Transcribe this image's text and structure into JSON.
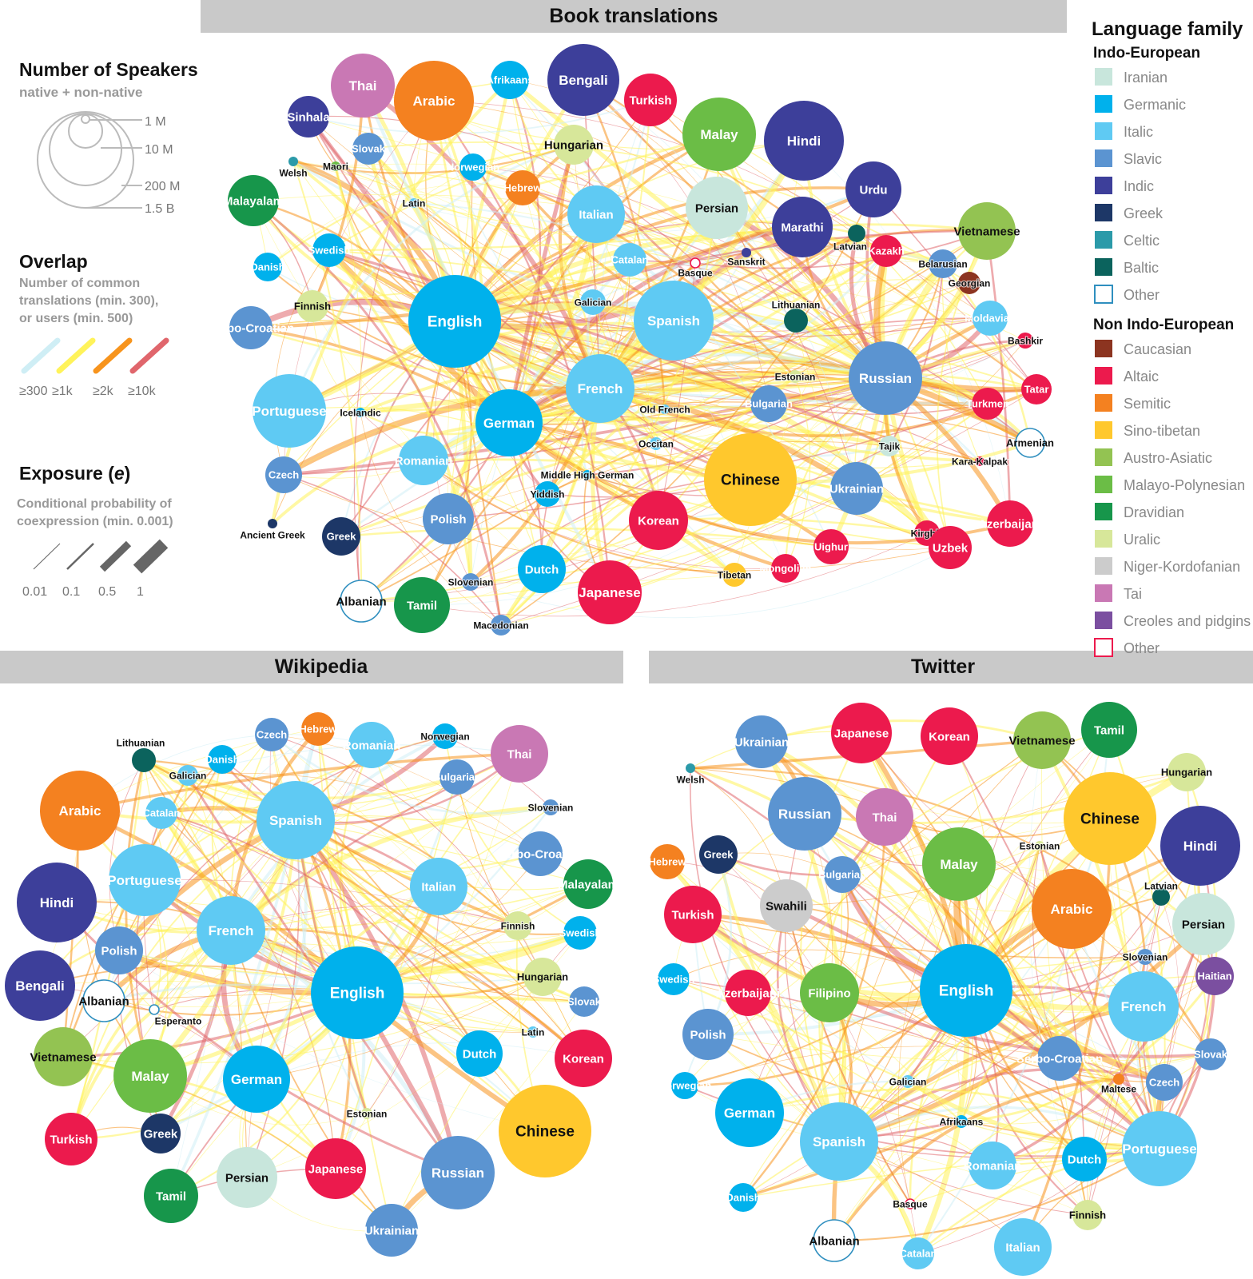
{
  "colors": {
    "Iranian": "#c8e6dc",
    "Germanic": "#00b1ec",
    "Italic": "#5fcaf3",
    "Slavic": "#5b94d1",
    "Indic": "#3d3f9a",
    "Greek": "#1d3767",
    "Celtic": "#2b9aa9",
    "Baltic": "#0b635d",
    "OtherIE": "#ffffff",
    "Caucasian": "#8c3420",
    "Altaic": "#ec1a4d",
    "Semitic": "#f48120",
    "Sino-tibetan": "#ffc82d",
    "Austro-Asiatic": "#93c352",
    "Malayo-Polynesian": "#6bbd46",
    "Dravidian": "#17964b",
    "Uralic": "#d7e79a",
    "Niger-Kordofanian": "#cccccc",
    "Tai": "#c978b4",
    "Creoles and pidgins": "#7b4fa0",
    "OtherNIE": "#ffffff"
  },
  "edge_colors": [
    "#cfeef5",
    "#fff35a",
    "#f7941d",
    "#e0666c"
  ],
  "panels": {
    "book": "Book translations",
    "wikipedia": "Wikipedia",
    "twitter": "Twitter"
  },
  "legend": {
    "speakers_title": "Number of Speakers",
    "speakers_sub": "native + non-native",
    "speakers_sizes": [
      "1 M",
      "10 M",
      "200 M",
      "1.5 B"
    ],
    "overlap_title": "Overlap",
    "overlap_sub": [
      "Number of common",
      "translations (min. 300),",
      "or users (min. 500)"
    ],
    "overlap_labels": [
      "≥300",
      "≥1k",
      "≥2k",
      "≥10k"
    ],
    "exposure_title": "Exposure (",
    "exposure_var": "e",
    "exposure_close": ")",
    "exposure_sub": [
      "Conditional probability of",
      "coexpression (min. 0.001)"
    ],
    "exposure_labels": [
      "0.01",
      "0.1",
      "0.5",
      "1"
    ],
    "family_title": "Language family",
    "ie_title": "Indo-European",
    "ie_items": [
      {
        "label": "Iranian",
        "key": "Iranian"
      },
      {
        "label": "Germanic",
        "key": "Germanic"
      },
      {
        "label": "Italic",
        "key": "Italic"
      },
      {
        "label": "Slavic",
        "key": "Slavic"
      },
      {
        "label": "Indic",
        "key": "Indic"
      },
      {
        "label": "Greek",
        "key": "Greek"
      },
      {
        "label": "Celtic",
        "key": "Celtic"
      },
      {
        "label": "Baltic",
        "key": "Baltic"
      },
      {
        "label": "Other",
        "key": "OtherIE",
        "outline": "#2f8fbf"
      }
    ],
    "nie_title": "Non Indo-European",
    "nie_items": [
      {
        "label": "Caucasian",
        "key": "Caucasian"
      },
      {
        "label": "Altaic",
        "key": "Altaic"
      },
      {
        "label": "Semitic",
        "key": "Semitic"
      },
      {
        "label": "Sino-tibetan",
        "key": "Sino-tibetan"
      },
      {
        "label": "Austro-Asiatic",
        "key": "Austro-Asiatic"
      },
      {
        "label": "Malayo-Polynesian",
        "key": "Malayo-Polynesian"
      },
      {
        "label": "Dravidian",
        "key": "Dravidian"
      },
      {
        "label": "Uralic",
        "key": "Uralic"
      },
      {
        "label": "Niger-Kordofanian",
        "key": "Niger-Kordofanian"
      },
      {
        "label": "Tai",
        "key": "Tai"
      },
      {
        "label": "Creoles and pidgins",
        "key": "Creoles and pidgins"
      },
      {
        "label": "Other",
        "key": "OtherNIE",
        "outline": "#ec1a4d"
      }
    ]
  },
  "book_nodes": [
    {
      "name": "Thai",
      "f": "Tai",
      "s": 40
    },
    {
      "name": "Arabic",
      "f": "Semitic",
      "s": 50
    },
    {
      "name": "Afrikaans",
      "f": "Germanic",
      "s": 24
    },
    {
      "name": "Bengali",
      "f": "Indic",
      "s": 45
    },
    {
      "name": "Turkish",
      "f": "Altaic",
      "s": 33
    },
    {
      "name": "Malay",
      "f": "Malayo-Polynesian",
      "s": 46
    },
    {
      "name": "Hindi",
      "f": "Indic",
      "s": 50
    },
    {
      "name": "Sinhala",
      "f": "Indic",
      "s": 26
    },
    {
      "name": "Slovak",
      "f": "Slavic",
      "s": 20
    },
    {
      "name": "Hungarian",
      "f": "Uralic",
      "s": 25
    },
    {
      "name": "Welsh",
      "f": "Celtic",
      "s": 6
    },
    {
      "name": "Maori",
      "f": "Malayo-Polynesian",
      "s": 6
    },
    {
      "name": "Norwegian",
      "f": "Germanic",
      "s": 17
    },
    {
      "name": "Hebrew",
      "f": "Semitic",
      "s": 22
    },
    {
      "name": "Urdu",
      "f": "Indic",
      "s": 35
    },
    {
      "name": "Malayalam",
      "f": "Dravidian",
      "s": 32
    },
    {
      "name": "Latin",
      "f": "Italic",
      "s": 6
    },
    {
      "name": "Italian",
      "f": "Italic",
      "s": 36
    },
    {
      "name": "Persian",
      "f": "Iranian",
      "s": 39
    },
    {
      "name": "Marathi",
      "f": "Indic",
      "s": 38
    },
    {
      "name": "Vietnamese",
      "f": "Austro-Asiatic",
      "s": 36
    },
    {
      "name": "Latvian",
      "f": "Baltic",
      "s": 11
    },
    {
      "name": "Kazakh",
      "f": "Altaic",
      "s": 20
    },
    {
      "name": "Swedish",
      "f": "Germanic",
      "s": 21
    },
    {
      "name": "Danish",
      "f": "Germanic",
      "s": 18
    },
    {
      "name": "Catalan",
      "f": "Italic",
      "s": 21
    },
    {
      "name": "Basque",
      "f": "OtherNIE",
      "s": 6
    },
    {
      "name": "Sanskrit",
      "f": "Indic",
      "s": 6
    },
    {
      "name": "Belarusian",
      "f": "Slavic",
      "s": 18
    },
    {
      "name": "Georgian",
      "f": "Caucasian",
      "s": 14
    },
    {
      "name": "Finnish",
      "f": "Uralic",
      "s": 20
    },
    {
      "name": "English",
      "f": "Germanic",
      "s": 58
    },
    {
      "name": "Galician",
      "f": "Italic",
      "s": 16
    },
    {
      "name": "Spanish",
      "f": "Italic",
      "s": 50
    },
    {
      "name": "Lithuanian",
      "f": "Baltic",
      "s": 15
    },
    {
      "name": "Moldavian",
      "f": "Italic",
      "s": 22
    },
    {
      "name": "Bashkir",
      "f": "Altaic",
      "s": 10
    },
    {
      "name": "Serbo-Croatian",
      "f": "Slavic",
      "s": 27
    },
    {
      "name": "French",
      "f": "Italic",
      "s": 43
    },
    {
      "name": "Estonian",
      "f": "Uralic",
      "s": 8
    },
    {
      "name": "Russian",
      "f": "Slavic",
      "s": 46
    },
    {
      "name": "Tatar",
      "f": "Altaic",
      "s": 19
    },
    {
      "name": "Portuguese",
      "f": "Italic",
      "s": 46
    },
    {
      "name": "Icelandic",
      "f": "Germanic",
      "s": 6
    },
    {
      "name": "German",
      "f": "Germanic",
      "s": 42
    },
    {
      "name": "Old French",
      "f": "Italic",
      "s": 6
    },
    {
      "name": "Bulgarian",
      "f": "Slavic",
      "s": 23
    },
    {
      "name": "Turkmen",
      "f": "Altaic",
      "s": 20
    },
    {
      "name": "Armenian",
      "f": "OtherIE",
      "s": 18
    },
    {
      "name": "Occitan",
      "f": "Italic",
      "s": 8
    },
    {
      "name": "Tajik",
      "f": "Iranian",
      "s": 13
    },
    {
      "name": "Czech",
      "f": "Slavic",
      "s": 23
    },
    {
      "name": "Romanian",
      "f": "Italic",
      "s": 31
    },
    {
      "name": "Chinese",
      "f": "Sino-tibetan",
      "s": 58
    },
    {
      "name": "Kara-Kalpak",
      "f": "Altaic",
      "s": 6
    },
    {
      "name": "Ukrainian",
      "f": "Slavic",
      "s": 33
    },
    {
      "name": "Middle High German",
      "f": "Germanic",
      "s": 6
    },
    {
      "name": "Yiddish",
      "f": "Germanic",
      "s": 16
    },
    {
      "name": "Polish",
      "f": "Slavic",
      "s": 32
    },
    {
      "name": "Ancient Greek",
      "f": "Greek",
      "s": 6
    },
    {
      "name": "Greek",
      "f": "Greek",
      "s": 24
    },
    {
      "name": "Korean",
      "f": "Altaic",
      "s": 37
    },
    {
      "name": "Kirghiz",
      "f": "Altaic",
      "s": 16
    },
    {
      "name": "Azerbaijani",
      "f": "Altaic",
      "s": 29
    },
    {
      "name": "Uighur",
      "f": "Altaic",
      "s": 22
    },
    {
      "name": "Uzbek",
      "f": "Altaic",
      "s": 27
    },
    {
      "name": "Dutch",
      "f": "Germanic",
      "s": 30
    },
    {
      "name": "Tibetan",
      "f": "Sino-tibetan",
      "s": 15
    },
    {
      "name": "Mongolian",
      "f": "Altaic",
      "s": 18
    },
    {
      "name": "Slovenian",
      "f": "Slavic",
      "s": 11
    },
    {
      "name": "Japanese",
      "f": "Altaic",
      "s": 40
    },
    {
      "name": "Albanian",
      "f": "OtherIE",
      "s": 26
    },
    {
      "name": "Tamil",
      "f": "Dravidian",
      "s": 35
    },
    {
      "name": "Macedonian",
      "f": "Slavic",
      "s": 13
    }
  ],
  "wiki_nodes": [
    {
      "name": "Lithuanian",
      "f": "Baltic",
      "s": 15
    },
    {
      "name": "Czech",
      "f": "Slavic",
      "s": 21
    },
    {
      "name": "Hebrew",
      "f": "Semitic",
      "s": 21
    },
    {
      "name": "Romanian",
      "f": "Italic",
      "s": 29
    },
    {
      "name": "Norwegian",
      "f": "Germanic",
      "s": 16
    },
    {
      "name": "Thai",
      "f": "Tai",
      "s": 36
    },
    {
      "name": "Danish",
      "f": "Germanic",
      "s": 18
    },
    {
      "name": "Galician",
      "f": "Italic",
      "s": 13
    },
    {
      "name": "Bulgarian",
      "f": "Slavic",
      "s": 22
    },
    {
      "name": "Arabic",
      "f": "Semitic",
      "s": 50
    },
    {
      "name": "Catalan",
      "f": "Italic",
      "s": 20
    },
    {
      "name": "Spanish",
      "f": "Italic",
      "s": 49
    },
    {
      "name": "Slovenian",
      "f": "Slavic",
      "s": 10
    },
    {
      "name": "Portuguese",
      "f": "Italic",
      "s": 45
    },
    {
      "name": "Serbo-Croatian",
      "f": "Slavic",
      "s": 28
    },
    {
      "name": "Malayalam",
      "f": "Dravidian",
      "s": 31
    },
    {
      "name": "Hindi",
      "f": "Indic",
      "s": 50
    },
    {
      "name": "Italian",
      "f": "Italic",
      "s": 36
    },
    {
      "name": "Finnish",
      "f": "Uralic",
      "s": 18
    },
    {
      "name": "Swedish",
      "f": "Germanic",
      "s": 21
    },
    {
      "name": "French",
      "f": "Italic",
      "s": 43
    },
    {
      "name": "Polish",
      "f": "Slavic",
      "s": 30
    },
    {
      "name": "Hungarian",
      "f": "Uralic",
      "s": 24
    },
    {
      "name": "English",
      "f": "Germanic",
      "s": 58
    },
    {
      "name": "Slovak",
      "f": "Slavic",
      "s": 19
    },
    {
      "name": "Bengali",
      "f": "Indic",
      "s": 44
    },
    {
      "name": "Albanian",
      "f": "OtherIE",
      "s": 26
    },
    {
      "name": "Esperanto",
      "f": "OtherIE",
      "s": 6
    },
    {
      "name": "Latin",
      "f": "Italic",
      "s": 7
    },
    {
      "name": "Dutch",
      "f": "Germanic",
      "s": 29
    },
    {
      "name": "Korean",
      "f": "Altaic",
      "s": 36
    },
    {
      "name": "Vietnamese",
      "f": "Austro-Asiatic",
      "s": 37
    },
    {
      "name": "Malay",
      "f": "Malayo-Polynesian",
      "s": 46
    },
    {
      "name": "German",
      "f": "Germanic",
      "s": 42
    },
    {
      "name": "Estonian",
      "f": "Uralic",
      "s": 7
    },
    {
      "name": "Chinese",
      "f": "Sino-tibetan",
      "s": 58
    },
    {
      "name": "Turkish",
      "f": "Altaic",
      "s": 33
    },
    {
      "name": "Greek",
      "f": "Greek",
      "s": 25
    },
    {
      "name": "Persian",
      "f": "Iranian",
      "s": 38
    },
    {
      "name": "Japanese",
      "f": "Altaic",
      "s": 38
    },
    {
      "name": "Russian",
      "f": "Slavic",
      "s": 46
    },
    {
      "name": "Tamil",
      "f": "Dravidian",
      "s": 34
    },
    {
      "name": "Ukrainian",
      "f": "Slavic",
      "s": 33
    }
  ],
  "twitter_nodes": [
    {
      "name": "Ukrainian",
      "f": "Slavic",
      "s": 33
    },
    {
      "name": "Japanese",
      "f": "Altaic",
      "s": 38
    },
    {
      "name": "Korean",
      "f": "Altaic",
      "s": 36
    },
    {
      "name": "Vietnamese",
      "f": "Austro-Asiatic",
      "s": 36
    },
    {
      "name": "Tamil",
      "f": "Dravidian",
      "s": 35
    },
    {
      "name": "Welsh",
      "f": "Celtic",
      "s": 6
    },
    {
      "name": "Hungarian",
      "f": "Uralic",
      "s": 24
    },
    {
      "name": "Russian",
      "f": "Slavic",
      "s": 46
    },
    {
      "name": "Thai",
      "f": "Tai",
      "s": 36
    },
    {
      "name": "Chinese",
      "f": "Sino-tibetan",
      "s": 58
    },
    {
      "name": "Hindi",
      "f": "Indic",
      "s": 50
    },
    {
      "name": "Estonian",
      "f": "Uralic",
      "s": 6
    },
    {
      "name": "Hebrew",
      "f": "Semitic",
      "s": 22
    },
    {
      "name": "Greek",
      "f": "Greek",
      "s": 24
    },
    {
      "name": "Malay",
      "f": "Malayo-Polynesian",
      "s": 46
    },
    {
      "name": "Bulgarian",
      "f": "Slavic",
      "s": 23
    },
    {
      "name": "Latvian",
      "f": "Baltic",
      "s": 11
    },
    {
      "name": "Swahili",
      "f": "Niger-Kordofanian",
      "s": 33
    },
    {
      "name": "Arabic",
      "f": "Semitic",
      "s": 50
    },
    {
      "name": "Persian",
      "f": "Iranian",
      "s": 39
    },
    {
      "name": "Turkish",
      "f": "Altaic",
      "s": 36
    },
    {
      "name": "Slovenian",
      "f": "Slavic",
      "s": 10
    },
    {
      "name": "Swedish",
      "f": "Germanic",
      "s": 20
    },
    {
      "name": "Azerbaijani",
      "f": "Altaic",
      "s": 29
    },
    {
      "name": "Filipino",
      "f": "Malayo-Polynesian",
      "s": 37
    },
    {
      "name": "English",
      "f": "Germanic",
      "s": 58
    },
    {
      "name": "Haitian",
      "f": "Creoles and pidgins",
      "s": 24
    },
    {
      "name": "French",
      "f": "Italic",
      "s": 44
    },
    {
      "name": "Polish",
      "f": "Slavic",
      "s": 32
    },
    {
      "name": "Serbo-Croatian",
      "f": "Slavic",
      "s": 28
    },
    {
      "name": "Slovak",
      "f": "Slavic",
      "s": 20
    },
    {
      "name": "Norwegian",
      "f": "Germanic",
      "s": 17
    },
    {
      "name": "Galician",
      "f": "Italic",
      "s": 8
    },
    {
      "name": "Maltese",
      "f": "Semitic",
      "s": 7
    },
    {
      "name": "Czech",
      "f": "Slavic",
      "s": 23
    },
    {
      "name": "German",
      "f": "Germanic",
      "s": 43
    },
    {
      "name": "Afrikaans",
      "f": "Germanic",
      "s": 8
    },
    {
      "name": "Spanish",
      "f": "Italic",
      "s": 49
    },
    {
      "name": "Portuguese",
      "f": "Italic",
      "s": 47
    },
    {
      "name": "Romanian",
      "f": "Italic",
      "s": 30
    },
    {
      "name": "Dutch",
      "f": "Germanic",
      "s": 28
    },
    {
      "name": "Basque",
      "f": "OtherNIE",
      "s": 6
    },
    {
      "name": "Finnish",
      "f": "Uralic",
      "s": 19
    },
    {
      "name": "Danish",
      "f": "Germanic",
      "s": 18
    },
    {
      "name": "Albanian",
      "f": "OtherIE",
      "s": 26
    },
    {
      "name": "Catalan",
      "f": "Italic",
      "s": 20
    },
    {
      "name": "Italian",
      "f": "Italic",
      "s": 36
    }
  ]
}
